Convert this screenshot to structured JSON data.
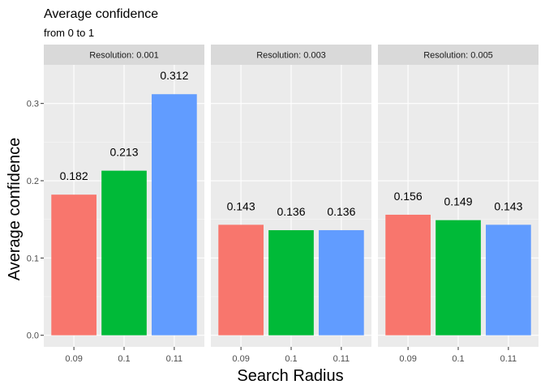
{
  "chart_data": {
    "type": "bar",
    "title": "Average confidence",
    "subtitle": "from 0 to 1",
    "xlabel": "Search Radius",
    "ylabel": "Average confidence",
    "ylim": [
      -0.015,
      0.35
    ],
    "yticks": [
      0.0,
      0.1,
      0.2,
      0.3
    ],
    "ytick_labels": [
      "0.0",
      "0.1",
      "0.2",
      "0.3"
    ],
    "categories": [
      "0.09",
      "0.1",
      "0.11"
    ],
    "category_colors": [
      "#F8766D",
      "#00BA38",
      "#619CFF"
    ],
    "grid": true,
    "legend": "none",
    "panels": [
      {
        "strip": "Resolution: 0.001",
        "values": [
          0.182,
          0.213,
          0.312
        ],
        "labels": [
          "0.182",
          "0.213",
          "0.312"
        ]
      },
      {
        "strip": "Resolution: 0.003",
        "values": [
          0.143,
          0.136,
          0.136
        ],
        "labels": [
          "0.143",
          "0.136",
          "0.136"
        ]
      },
      {
        "strip": "Resolution: 0.005",
        "values": [
          0.156,
          0.149,
          0.143
        ],
        "labels": [
          "0.156",
          "0.149",
          "0.143"
        ]
      }
    ]
  },
  "colors": {
    "panel_bg": "#EBEBEB",
    "strip_bg": "#D9D9D9",
    "grid_major": "#FFFFFF",
    "grid_minor": "#F5F5F5"
  }
}
